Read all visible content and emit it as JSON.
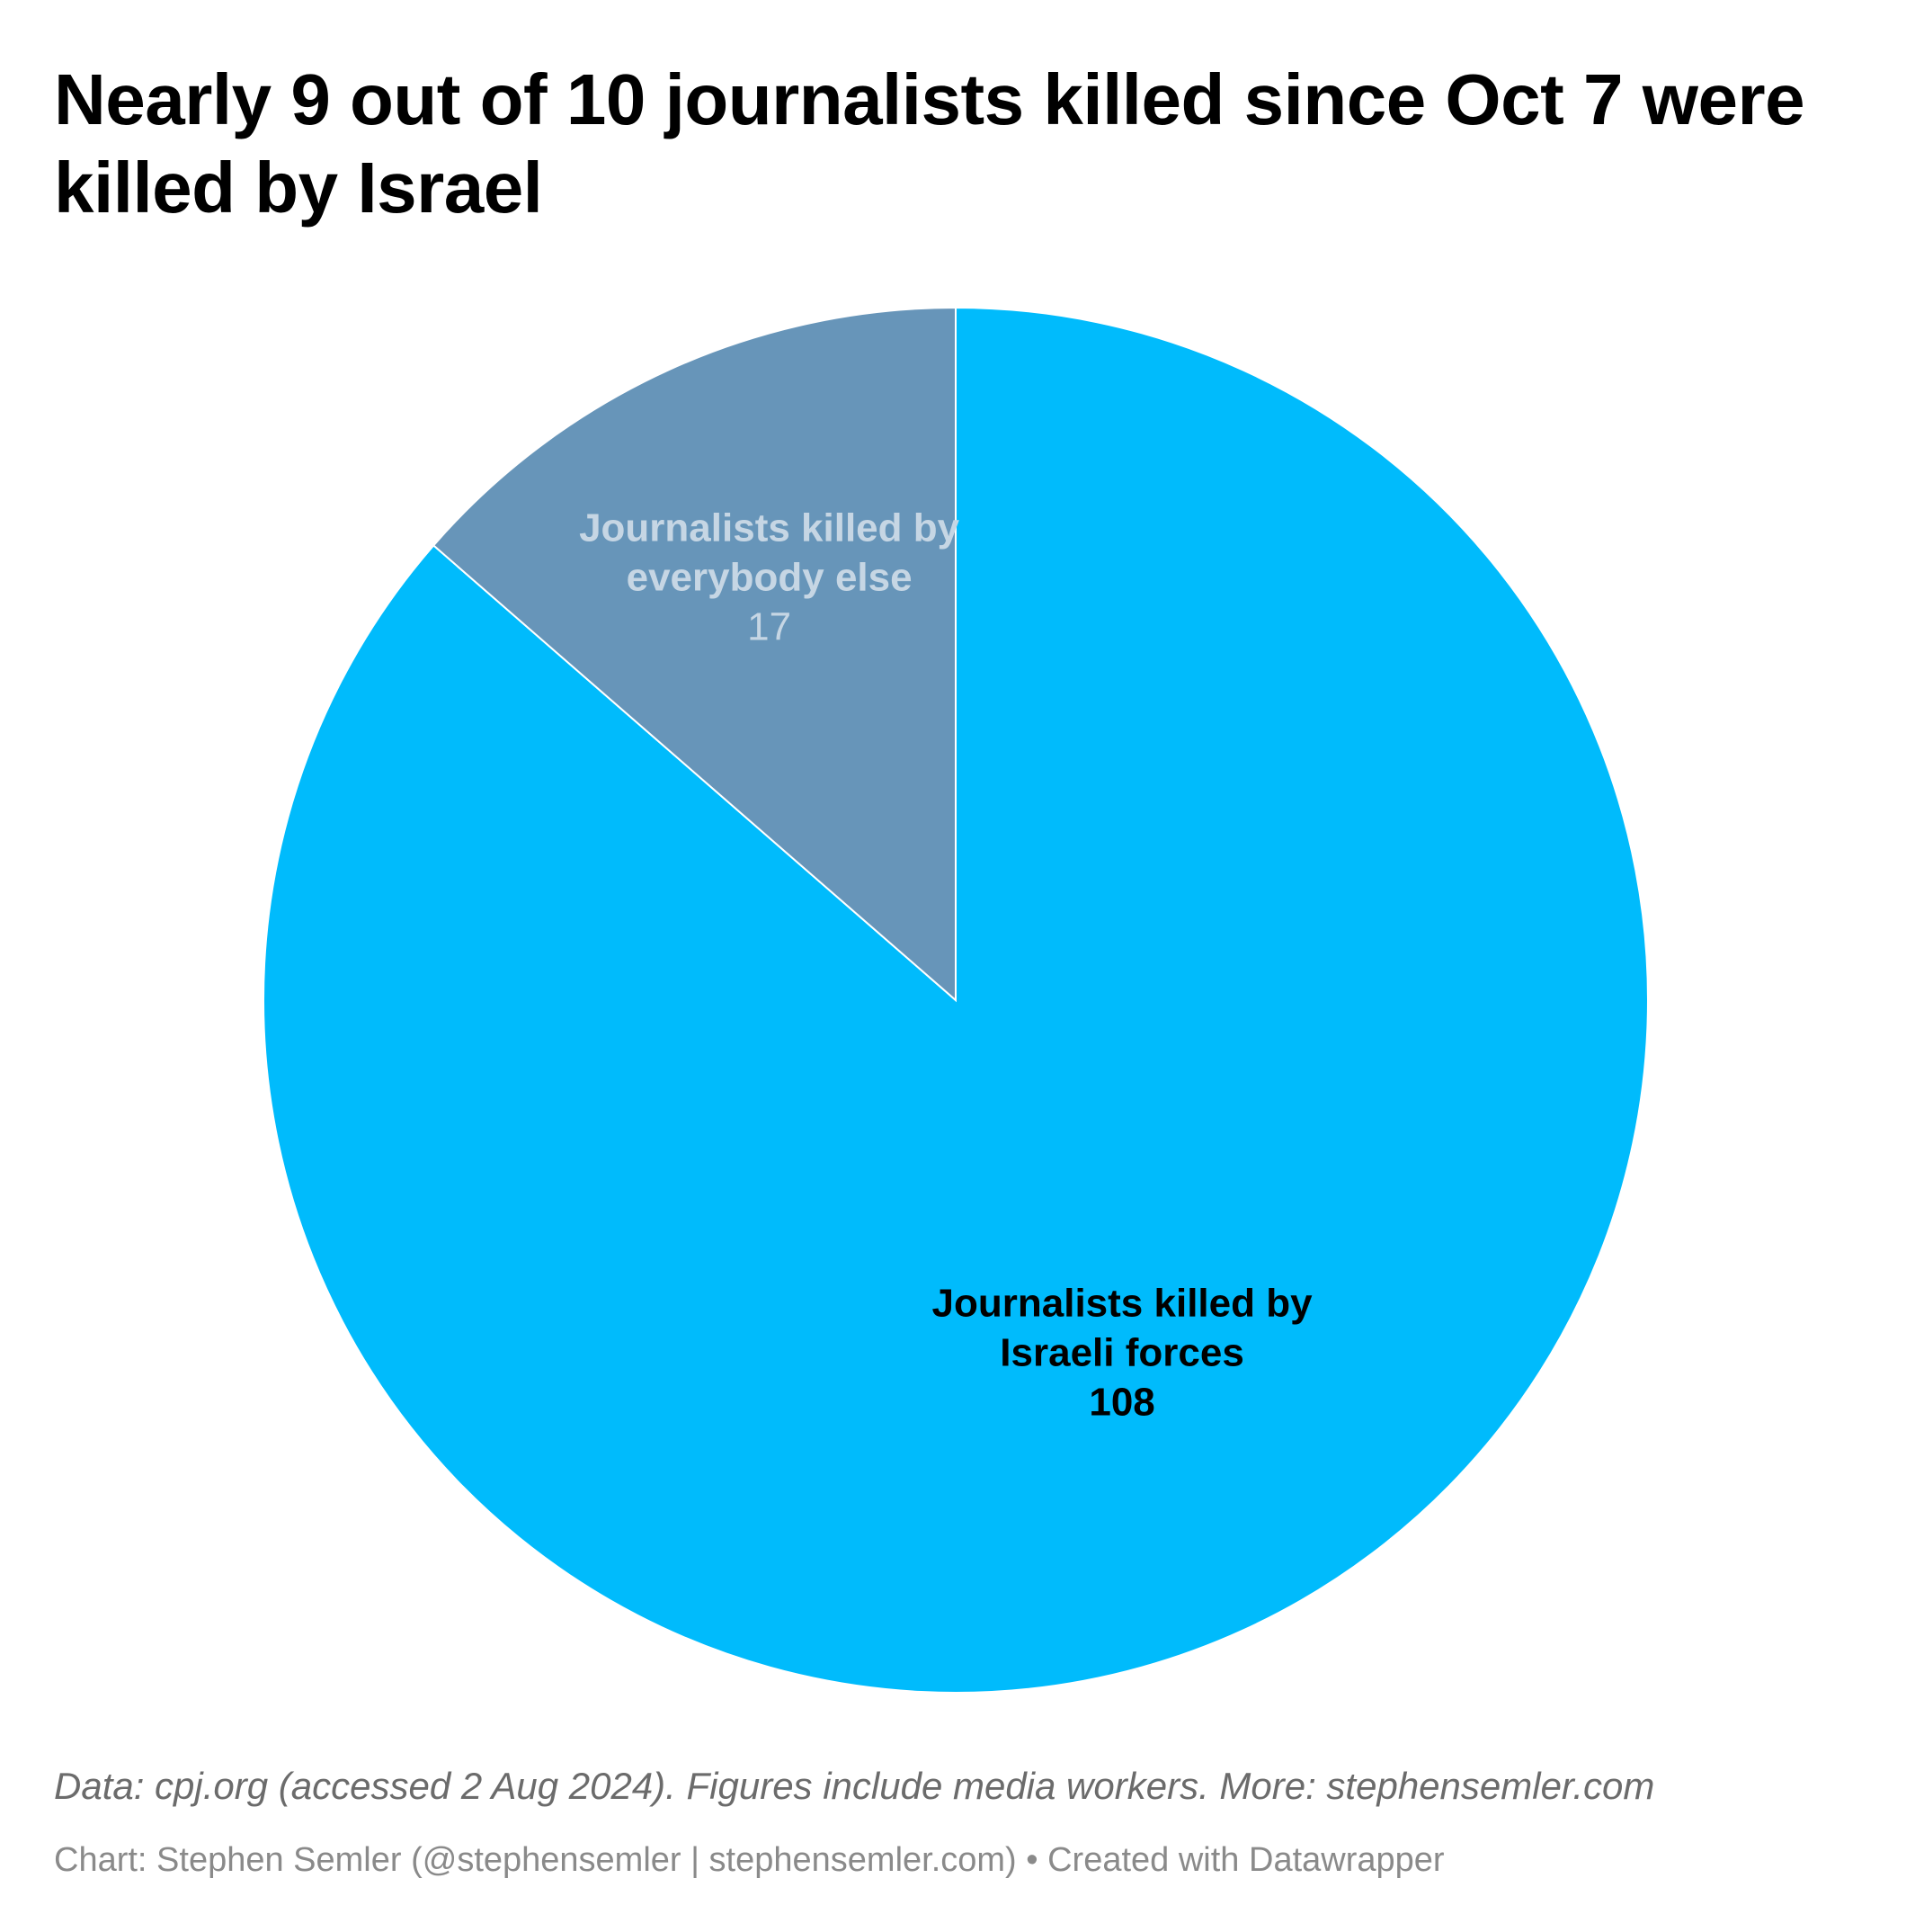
{
  "chart_data": {
    "type": "pie",
    "title": "Nearly 9 out of 10 journalists killed since Oct 7 were killed by Israel",
    "slices": [
      {
        "label_lines": [
          "Journalists killed by",
          "Israeli forces"
        ],
        "value": 108,
        "color": "#00bbfc",
        "label_color": "#000000",
        "value_bold": true
      },
      {
        "label_lines": [
          "Journalists killed by",
          "everybody else"
        ],
        "value": 17,
        "color": "#6795b9",
        "label_color": "#c6d6e4",
        "value_bold": false
      }
    ],
    "start_angle_deg": 0,
    "direction": "clockwise"
  },
  "footer": {
    "notes": "Data: cpj.org (accessed 2 Aug 2024). Figures include media workers. More: stephensemler.com",
    "credit": "Chart: Stephen Semler (@stephensemler | stephensemler.com) • Created with Datawrapper"
  }
}
